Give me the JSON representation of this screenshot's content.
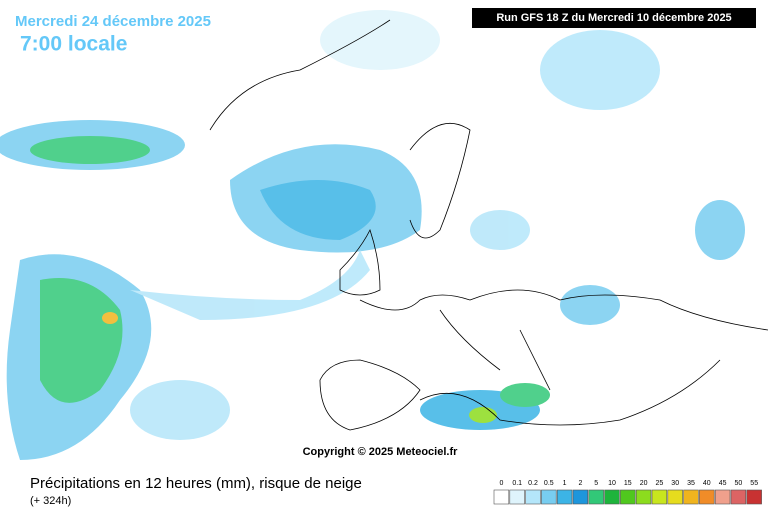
{
  "header": {
    "date": "Mercredi 24 décembre 2025",
    "time": "7:00 locale",
    "run": "Run GFS 18 Z du Mercredi 10 décembre 2025"
  },
  "copyright": "Copyright © 2025 Meteociel.fr",
  "footer": {
    "title": "Précipitations en 12 heures (mm), risque de neige",
    "lead": "(+ 324h)"
  },
  "legend": {
    "labels": [
      "0",
      "0.1",
      "0.2",
      "0.5",
      "1",
      "2",
      "5",
      "10",
      "15",
      "20",
      "25",
      "30",
      "35",
      "40",
      "45",
      "50",
      "55"
    ],
    "colors": [
      "#ffffff",
      "#dff4fc",
      "#b4e6fa",
      "#78cdf0",
      "#3cb4e6",
      "#1e96dc",
      "#32c878",
      "#1eb43c",
      "#50c81e",
      "#8cdc1e",
      "#c8e61e",
      "#e6dc1e",
      "#f0b41e",
      "#f08c28",
      "#f0a08c",
      "#dc6464",
      "#c83232"
    ]
  }
}
